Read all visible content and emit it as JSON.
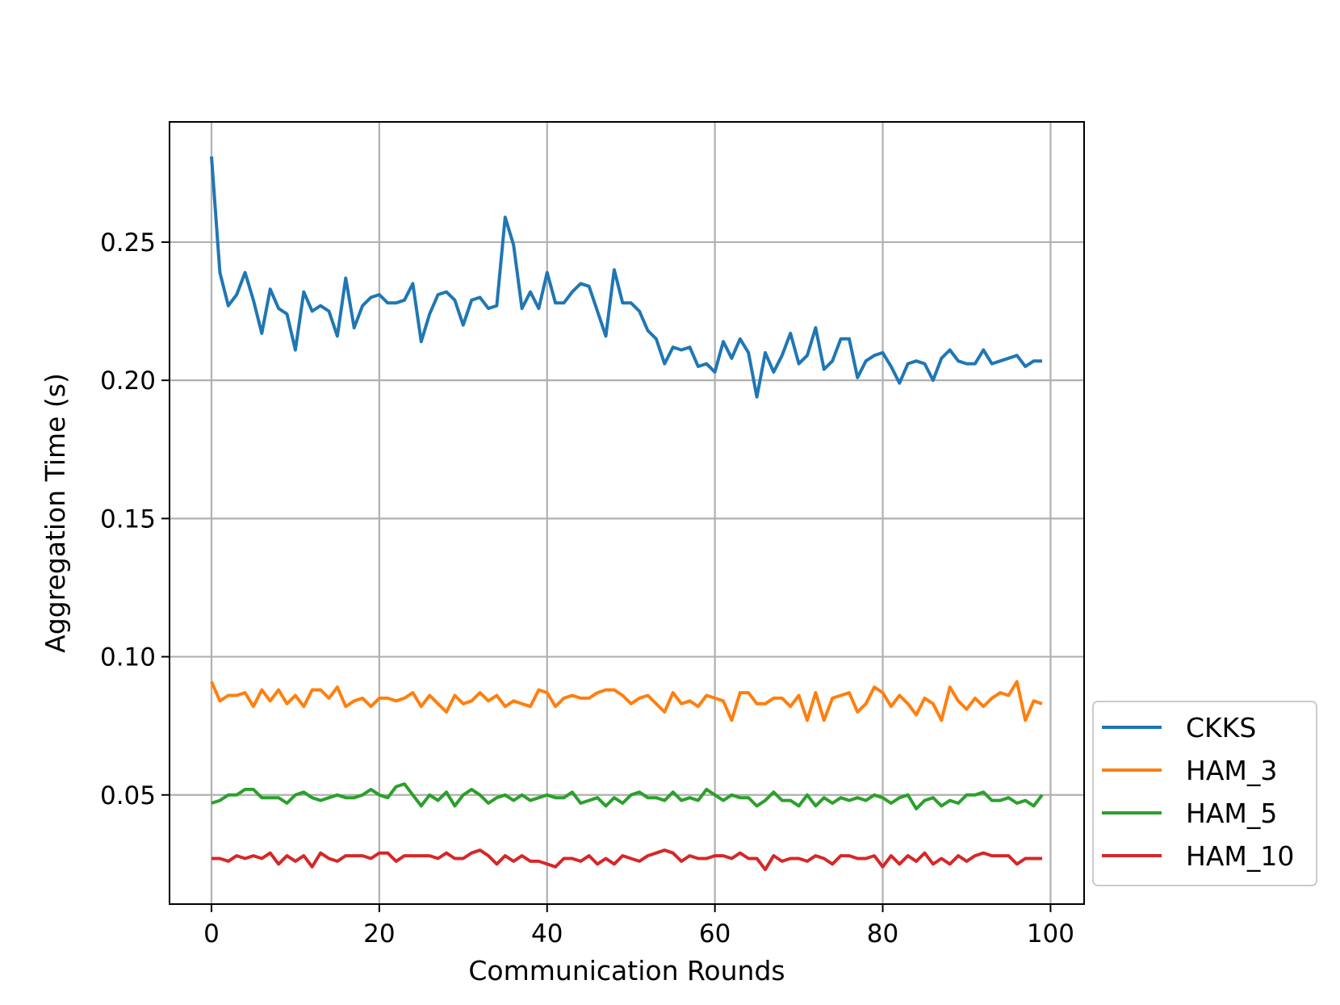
{
  "chart_data": {
    "type": "line",
    "title": "",
    "xlabel": "Communication Rounds",
    "ylabel": "Aggregation Time (s)",
    "xlim": [
      -5,
      104
    ],
    "ylim": [
      0.0105,
      0.2935
    ],
    "xticks": [
      0,
      20,
      40,
      60,
      80,
      100
    ],
    "xtick_labels": [
      "0",
      "20",
      "40",
      "60",
      "80",
      "100"
    ],
    "yticks": [
      0.05,
      0.1,
      0.15,
      0.2,
      0.25
    ],
    "ytick_labels": [
      "0.05",
      "0.10",
      "0.15",
      "0.20",
      "0.25"
    ],
    "grid": true,
    "legend_position": "outside-bottom-right",
    "x": [
      0,
      1,
      2,
      3,
      4,
      5,
      6,
      7,
      8,
      9,
      10,
      11,
      12,
      13,
      14,
      15,
      16,
      17,
      18,
      19,
      20,
      21,
      22,
      23,
      24,
      25,
      26,
      27,
      28,
      29,
      30,
      31,
      32,
      33,
      34,
      35,
      36,
      37,
      38,
      39,
      40,
      41,
      42,
      43,
      44,
      45,
      46,
      47,
      48,
      49,
      50,
      51,
      52,
      53,
      54,
      55,
      56,
      57,
      58,
      59,
      60,
      61,
      62,
      63,
      64,
      65,
      66,
      67,
      68,
      69,
      70,
      71,
      72,
      73,
      74,
      75,
      76,
      77,
      78,
      79,
      80,
      81,
      82,
      83,
      84,
      85,
      86,
      87,
      88,
      89,
      90,
      91,
      92,
      93,
      94,
      95,
      96,
      97,
      98,
      99
    ],
    "series": [
      {
        "name": "CKKS",
        "color": "#1f77b4",
        "values": [
          0.281,
          0.239,
          0.227,
          0.231,
          0.239,
          0.229,
          0.217,
          0.233,
          0.226,
          0.224,
          0.211,
          0.232,
          0.225,
          0.227,
          0.225,
          0.216,
          0.237,
          0.219,
          0.227,
          0.23,
          0.231,
          0.228,
          0.228,
          0.229,
          0.235,
          0.214,
          0.224,
          0.231,
          0.232,
          0.229,
          0.22,
          0.229,
          0.23,
          0.226,
          0.227,
          0.259,
          0.249,
          0.226,
          0.232,
          0.226,
          0.239,
          0.228,
          0.228,
          0.232,
          0.235,
          0.234,
          0.225,
          0.216,
          0.24,
          0.228,
          0.228,
          0.225,
          0.218,
          0.215,
          0.206,
          0.212,
          0.211,
          0.212,
          0.205,
          0.206,
          0.203,
          0.214,
          0.208,
          0.215,
          0.21,
          0.194,
          0.21,
          0.203,
          0.209,
          0.217,
          0.206,
          0.209,
          0.219,
          0.204,
          0.207,
          0.215,
          0.215,
          0.201,
          0.207,
          0.209,
          0.21,
          0.205,
          0.199,
          0.206,
          0.207,
          0.206,
          0.2,
          0.208,
          0.211,
          0.207,
          0.206,
          0.206,
          0.211,
          0.206,
          0.207,
          0.208,
          0.209,
          0.205,
          0.207,
          0.207
        ]
      },
      {
        "name": "HAM_3",
        "color": "#ff7f0e",
        "values": [
          0.091,
          0.084,
          0.086,
          0.086,
          0.087,
          0.082,
          0.088,
          0.084,
          0.088,
          0.083,
          0.086,
          0.082,
          0.088,
          0.088,
          0.085,
          0.089,
          0.082,
          0.084,
          0.085,
          0.082,
          0.085,
          0.085,
          0.084,
          0.085,
          0.087,
          0.082,
          0.086,
          0.083,
          0.08,
          0.086,
          0.083,
          0.084,
          0.087,
          0.084,
          0.086,
          0.082,
          0.084,
          0.083,
          0.082,
          0.088,
          0.087,
          0.082,
          0.085,
          0.086,
          0.085,
          0.085,
          0.087,
          0.088,
          0.088,
          0.086,
          0.083,
          0.085,
          0.086,
          0.083,
          0.08,
          0.087,
          0.083,
          0.084,
          0.082,
          0.086,
          0.085,
          0.084,
          0.077,
          0.087,
          0.087,
          0.083,
          0.083,
          0.085,
          0.085,
          0.082,
          0.086,
          0.077,
          0.087,
          0.077,
          0.085,
          0.086,
          0.087,
          0.08,
          0.083,
          0.089,
          0.087,
          0.082,
          0.086,
          0.083,
          0.079,
          0.085,
          0.083,
          0.077,
          0.089,
          0.084,
          0.081,
          0.085,
          0.082,
          0.085,
          0.087,
          0.086,
          0.091,
          0.077,
          0.084,
          0.083
        ]
      },
      {
        "name": "HAM_5",
        "color": "#2ca02c",
        "values": [
          0.047,
          0.048,
          0.05,
          0.05,
          0.052,
          0.052,
          0.049,
          0.049,
          0.049,
          0.047,
          0.05,
          0.051,
          0.049,
          0.048,
          0.049,
          0.05,
          0.049,
          0.049,
          0.05,
          0.052,
          0.05,
          0.049,
          0.053,
          0.054,
          0.05,
          0.046,
          0.05,
          0.048,
          0.051,
          0.046,
          0.05,
          0.052,
          0.05,
          0.047,
          0.049,
          0.05,
          0.048,
          0.05,
          0.048,
          0.049,
          0.05,
          0.049,
          0.049,
          0.051,
          0.047,
          0.048,
          0.049,
          0.046,
          0.049,
          0.047,
          0.05,
          0.051,
          0.049,
          0.049,
          0.048,
          0.051,
          0.048,
          0.049,
          0.048,
          0.052,
          0.05,
          0.048,
          0.05,
          0.049,
          0.049,
          0.046,
          0.048,
          0.051,
          0.048,
          0.048,
          0.046,
          0.05,
          0.046,
          0.049,
          0.047,
          0.049,
          0.048,
          0.049,
          0.048,
          0.05,
          0.049,
          0.047,
          0.049,
          0.05,
          0.045,
          0.048,
          0.049,
          0.046,
          0.048,
          0.047,
          0.05,
          0.05,
          0.051,
          0.048,
          0.048,
          0.049,
          0.047,
          0.048,
          0.046,
          0.05
        ]
      },
      {
        "name": "HAM_10",
        "color": "#d62728",
        "values": [
          0.027,
          0.027,
          0.026,
          0.028,
          0.027,
          0.028,
          0.027,
          0.029,
          0.025,
          0.028,
          0.026,
          0.028,
          0.024,
          0.029,
          0.027,
          0.026,
          0.028,
          0.028,
          0.028,
          0.027,
          0.029,
          0.029,
          0.026,
          0.028,
          0.028,
          0.028,
          0.028,
          0.027,
          0.029,
          0.027,
          0.027,
          0.029,
          0.03,
          0.028,
          0.025,
          0.028,
          0.026,
          0.028,
          0.026,
          0.026,
          0.025,
          0.024,
          0.027,
          0.027,
          0.026,
          0.028,
          0.025,
          0.027,
          0.025,
          0.028,
          0.027,
          0.026,
          0.028,
          0.029,
          0.03,
          0.029,
          0.026,
          0.028,
          0.027,
          0.027,
          0.028,
          0.028,
          0.027,
          0.029,
          0.027,
          0.027,
          0.023,
          0.028,
          0.026,
          0.027,
          0.027,
          0.026,
          0.028,
          0.027,
          0.025,
          0.028,
          0.028,
          0.027,
          0.027,
          0.028,
          0.024,
          0.028,
          0.025,
          0.028,
          0.026,
          0.029,
          0.025,
          0.027,
          0.025,
          0.028,
          0.026,
          0.028,
          0.029,
          0.028,
          0.028,
          0.028,
          0.025,
          0.027,
          0.027,
          0.027
        ]
      }
    ]
  }
}
